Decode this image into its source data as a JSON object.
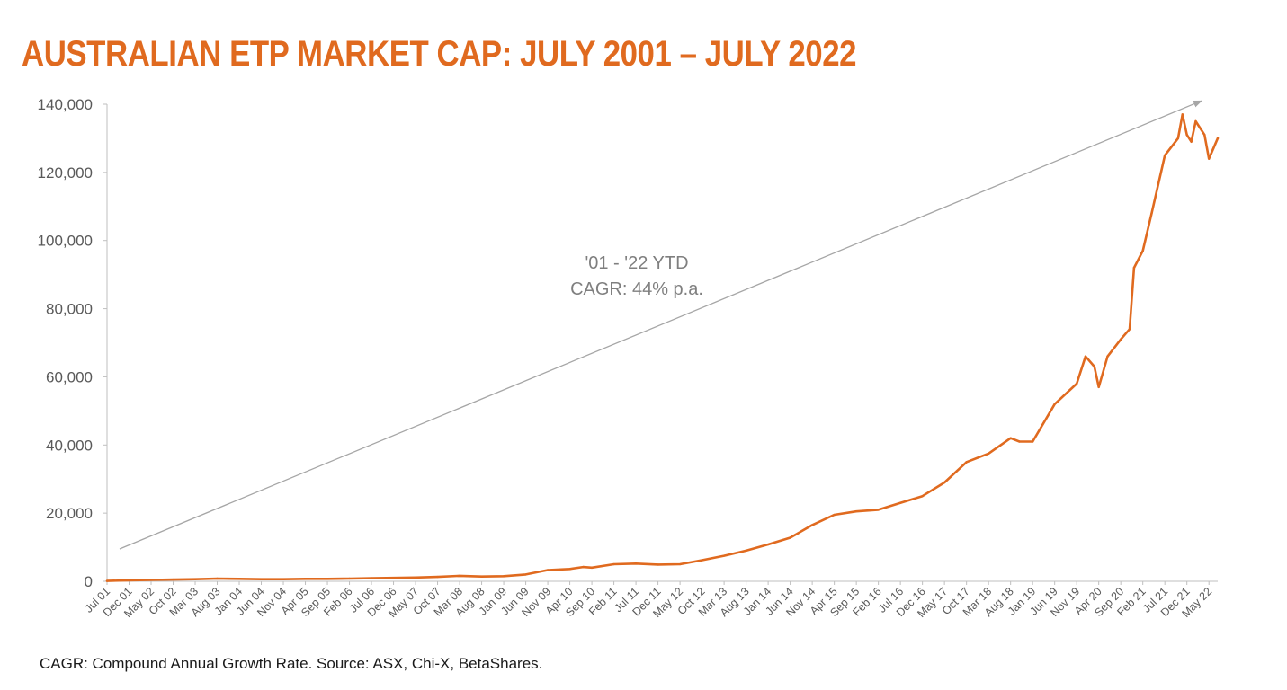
{
  "title": "AUSTRALIAN ETP MARKET CAP: JULY 2001 – JULY 2022",
  "footnote": "CAGR: Compound Annual Growth Rate. Source: ASX, Chi-X, BetaShares.",
  "colors": {
    "title": "#E06A1F",
    "series": "#E06A1F",
    "trend_arrow": "#A6A6A6",
    "axis": "#BFBFBF"
  },
  "chart_data": {
    "type": "line",
    "ylim": [
      0,
      140000
    ],
    "yticks": [
      0,
      20000,
      40000,
      60000,
      80000,
      100000,
      120000,
      140000
    ],
    "ytick_labels": [
      "0",
      "20,000",
      "40,000",
      "60,000",
      "80,000",
      "100,000",
      "120,000",
      "140,000"
    ],
    "xtick_labels": [
      "Jul 01",
      "Dec 01",
      "May 02",
      "Oct 02",
      "Mar 03",
      "Aug 03",
      "Jan 04",
      "Jun 04",
      "Nov 04",
      "Apr 05",
      "Sep 05",
      "Feb 06",
      "Jul 06",
      "Dec 06",
      "May 07",
      "Oct 07",
      "Mar 08",
      "Aug 08",
      "Jan 09",
      "Jun 09",
      "Nov 09",
      "Apr 10",
      "Sep 10",
      "Feb 11",
      "Jul 11",
      "Dec 11",
      "May 12",
      "Oct 12",
      "Mar 13",
      "Aug 13",
      "Jan 14",
      "Jun 14",
      "Nov 14",
      "Apr 15",
      "Sep 15",
      "Feb 16",
      "Jul 16",
      "Dec 16",
      "May 17",
      "Oct 17",
      "Mar 18",
      "Aug 18",
      "Jan 19",
      "Jun 19",
      "Nov 19",
      "Apr 20",
      "Sep 20",
      "Feb 21",
      "Jul 21",
      "Dec 21",
      "May 22"
    ],
    "grid": false,
    "legend": "none",
    "series": [
      {
        "x": [
          "Jul 01",
          "Dec 01",
          "May 02",
          "Oct 02",
          "Mar 03",
          "Aug 03",
          "Jan 04",
          "Jun 04",
          "Nov 04",
          "Apr 05",
          "Sep 05",
          "Feb 06",
          "Jul 06",
          "Dec 06",
          "May 07",
          "Oct 07",
          "Mar 08",
          "Aug 08",
          "Jan 09",
          "Jun 09",
          "Nov 09",
          "Apr 10",
          "Jul 10",
          "Sep 10",
          "Feb 11",
          "Jul 11",
          "Dec 11",
          "May 12",
          "Oct 12",
          "Mar 13",
          "Aug 13",
          "Jan 14",
          "Jun 14",
          "Nov 14",
          "Apr 15",
          "Sep 15",
          "Feb 16",
          "Jul 16",
          "Dec 16",
          "May 17",
          "Oct 17",
          "Mar 18",
          "Aug 18",
          "Oct 18",
          "Jan 19",
          "Jun 19",
          "Nov 19",
          "Jan 20",
          "Mar 20",
          "Apr 20",
          "Jun 20",
          "Sep 20",
          "Nov 20",
          "Dec 20",
          "Feb 21",
          "Apr 21",
          "Jul 21",
          "Oct 21",
          "Nov 21",
          "Dec 21",
          "Jan 22",
          "Feb 22",
          "Mar 22",
          "Apr 22",
          "May 22",
          "Jun 22",
          "Jul 22"
        ],
        "values": [
          100,
          300,
          400,
          500,
          600,
          800,
          700,
          600,
          600,
          700,
          700,
          800,
          900,
          1000,
          1100,
          1300,
          1600,
          1400,
          1500,
          2000,
          3300,
          3600,
          4200,
          4000,
          5000,
          5200,
          4900,
          5000,
          6200,
          7500,
          9000,
          10800,
          12800,
          16500,
          19500,
          20500,
          21000,
          23000,
          25000,
          29000,
          35000,
          37500,
          42000,
          41000,
          41000,
          52000,
          58000,
          66000,
          63000,
          57000,
          66000,
          71000,
          74000,
          92000,
          97000,
          108000,
          125000,
          130000,
          137000,
          131000,
          129000,
          135000,
          133000,
          131000,
          124000,
          127000,
          130000
        ]
      }
    ],
    "annotation": {
      "lines": [
        "'01 - '22 YTD",
        "CAGR: 44% p.a."
      ]
    },
    "trend_arrow": {
      "from": {
        "x": "Jul 01",
        "y": 9500
      },
      "to": {
        "x": "Jul 22",
        "y": 141000
      }
    }
  }
}
